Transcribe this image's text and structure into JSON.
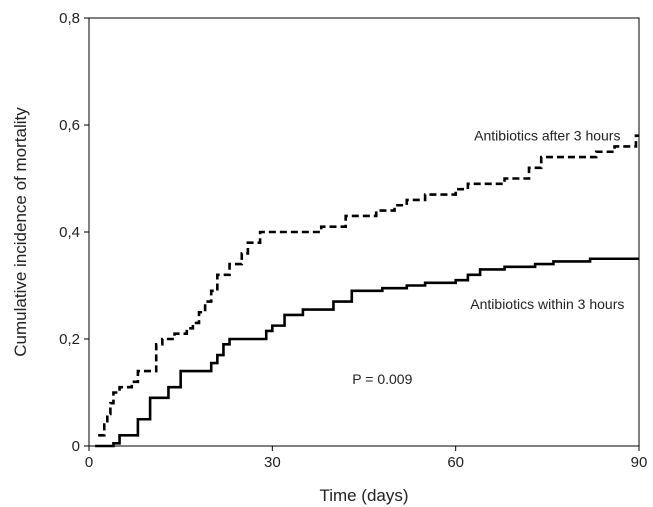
{
  "chart_data": {
    "type": "line",
    "title": "",
    "xlabel": "Time (days)",
    "ylabel": "Cumulative incidence of mortality",
    "xlim": [
      0,
      90
    ],
    "ylim": [
      0,
      0.8
    ],
    "x_ticks": [
      0,
      30,
      60,
      90
    ],
    "x_tick_labels": [
      "0",
      "30",
      "60",
      "90"
    ],
    "y_ticks": [
      0,
      0.2,
      0.4,
      0.6,
      0.8
    ],
    "y_tick_labels": [
      "0",
      "0,2",
      "0,4",
      "0,6",
      "0,8"
    ],
    "grid": false,
    "series": [
      {
        "name": "Antibiotics after 3 hours",
        "style": "dashed",
        "color": "#000000",
        "x": [
          1.5,
          2.5,
          3,
          3.5,
          4,
          5,
          7,
          8,
          11,
          12,
          14,
          16,
          17,
          18,
          19,
          20,
          21,
          23,
          25,
          26,
          28,
          38,
          42,
          47,
          50,
          52,
          55,
          60,
          62,
          68,
          72,
          74,
          77,
          80,
          83,
          86,
          88,
          89.5,
          90
        ],
        "y": [
          0.02,
          0.04,
          0.06,
          0.08,
          0.1,
          0.11,
          0.12,
          0.14,
          0.19,
          0.2,
          0.21,
          0.22,
          0.23,
          0.25,
          0.27,
          0.29,
          0.32,
          0.34,
          0.36,
          0.38,
          0.4,
          0.41,
          0.43,
          0.44,
          0.45,
          0.46,
          0.47,
          0.48,
          0.49,
          0.5,
          0.52,
          0.54,
          0.54,
          0.54,
          0.55,
          0.56,
          0.56,
          0.58,
          0.58
        ]
      },
      {
        "name": "Antibiotics within 3 hours",
        "style": "solid",
        "color": "#000000",
        "x": [
          1,
          3,
          4,
          5,
          8,
          10,
          13,
          15,
          20,
          21,
          22,
          23,
          29,
          30,
          32,
          35,
          40,
          43,
          48,
          52,
          55,
          60,
          62,
          64,
          68,
          70,
          73,
          76,
          82,
          90
        ],
        "y": [
          0,
          0,
          0.005,
          0.02,
          0.05,
          0.09,
          0.11,
          0.14,
          0.155,
          0.17,
          0.19,
          0.2,
          0.215,
          0.225,
          0.245,
          0.255,
          0.27,
          0.29,
          0.295,
          0.3,
          0.305,
          0.31,
          0.32,
          0.33,
          0.335,
          0.335,
          0.34,
          0.345,
          0.35,
          0.35
        ]
      }
    ],
    "annotations": [
      {
        "text": "Antibiotics after 3 hours",
        "x": 75,
        "y": 0.58
      },
      {
        "text": "Antibiotics within 3 hours",
        "x": 75,
        "y": 0.265
      },
      {
        "text": "P = 0.009",
        "x": 48,
        "y": 0.125
      }
    ]
  }
}
